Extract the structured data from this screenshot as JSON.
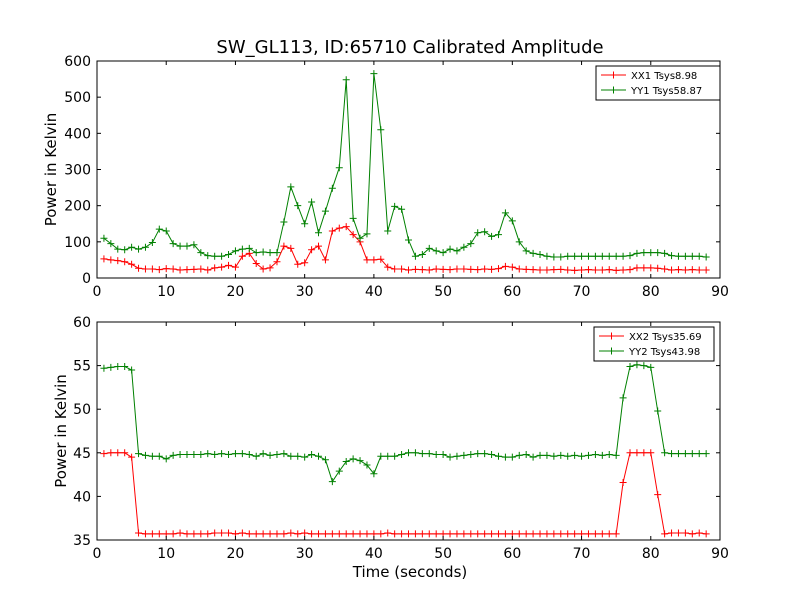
{
  "figure": {
    "title": "SW_GL113, ID:65710 Calibrated Amplitude",
    "xlabel": "Time (seconds)"
  },
  "chart_data": [
    {
      "type": "line",
      "xlabel": "",
      "ylabel": "Power in Kelvin",
      "xlim": [
        0,
        90
      ],
      "ylim": [
        0,
        600
      ],
      "xticks": [
        0,
        10,
        20,
        30,
        40,
        50,
        60,
        70,
        80,
        90
      ],
      "yticks": [
        0,
        100,
        200,
        300,
        400,
        500,
        600
      ],
      "grid": false,
      "legend_position": "top-right",
      "x": [
        1,
        2,
        3,
        4,
        5,
        6,
        7,
        8,
        9,
        10,
        11,
        12,
        13,
        14,
        15,
        16,
        17,
        18,
        19,
        20,
        21,
        22,
        23,
        24,
        25,
        26,
        27,
        28,
        29,
        30,
        31,
        32,
        33,
        34,
        35,
        36,
        37,
        38,
        39,
        40,
        41,
        42,
        43,
        44,
        45,
        46,
        47,
        48,
        49,
        50,
        51,
        52,
        53,
        54,
        55,
        56,
        57,
        58,
        59,
        60,
        61,
        62,
        63,
        64,
        65,
        66,
        67,
        68,
        69,
        70,
        71,
        72,
        73,
        74,
        75,
        76,
        77,
        78,
        79,
        80,
        81,
        82,
        83,
        84,
        85,
        86,
        87,
        88
      ],
      "series": [
        {
          "name": "XX1 Tsys8.98",
          "color": "#ff0000",
          "values": [
            53,
            50,
            48,
            45,
            38,
            27,
            25,
            25,
            23,
            26,
            25,
            22,
            23,
            24,
            25,
            22,
            28,
            30,
            35,
            30,
            60,
            68,
            40,
            25,
            28,
            45,
            88,
            82,
            38,
            42,
            78,
            88,
            50,
            130,
            138,
            142,
            120,
            100,
            50,
            50,
            52,
            30,
            25,
            25,
            22,
            24,
            23,
            22,
            25,
            24,
            23,
            25,
            25,
            24,
            23,
            25,
            24,
            26,
            32,
            30,
            25,
            24,
            23,
            22,
            22,
            23,
            24,
            22,
            21,
            22,
            23,
            22,
            22,
            23,
            21,
            22,
            23,
            28,
            28,
            28,
            27,
            25,
            22,
            23,
            22,
            23,
            22,
            22
          ]
        },
        {
          "name": "YY1 Tsys58.87",
          "color": "#008000",
          "values": [
            110,
            95,
            80,
            78,
            85,
            80,
            85,
            98,
            135,
            130,
            95,
            88,
            88,
            92,
            70,
            62,
            60,
            60,
            65,
            75,
            80,
            82,
            70,
            72,
            70,
            70,
            155,
            252,
            200,
            150,
            210,
            125,
            185,
            248,
            305,
            548,
            165,
            110,
            122,
            565,
            410,
            130,
            198,
            190,
            105,
            60,
            65,
            82,
            75,
            70,
            80,
            75,
            85,
            95,
            125,
            128,
            115,
            120,
            180,
            158,
            100,
            75,
            68,
            65,
            60,
            58,
            58,
            60,
            60,
            60,
            60,
            60,
            60,
            60,
            60,
            60,
            62,
            68,
            70,
            70,
            70,
            68,
            62,
            60,
            60,
            60,
            60,
            58
          ]
        }
      ]
    },
    {
      "type": "line",
      "xlabel": "Time (seconds)",
      "ylabel": "Power in Kelvin",
      "xlim": [
        0,
        90
      ],
      "ylim": [
        35,
        60
      ],
      "xticks": [
        0,
        10,
        20,
        30,
        40,
        50,
        60,
        70,
        80,
        90
      ],
      "yticks": [
        35,
        40,
        45,
        50,
        55,
        60
      ],
      "grid": false,
      "legend_position": "top-right",
      "x": [
        1,
        2,
        3,
        4,
        5,
        6,
        7,
        8,
        9,
        10,
        11,
        12,
        13,
        14,
        15,
        16,
        17,
        18,
        19,
        20,
        21,
        22,
        23,
        24,
        25,
        26,
        27,
        28,
        29,
        30,
        31,
        32,
        33,
        34,
        35,
        36,
        37,
        38,
        39,
        40,
        41,
        42,
        43,
        44,
        45,
        46,
        47,
        48,
        49,
        50,
        51,
        52,
        53,
        54,
        55,
        56,
        57,
        58,
        59,
        60,
        61,
        62,
        63,
        64,
        65,
        66,
        67,
        68,
        69,
        70,
        71,
        72,
        73,
        74,
        75,
        76,
        77,
        78,
        79,
        80,
        81,
        82,
        83,
        84,
        85,
        86,
        87,
        88
      ],
      "series": [
        {
          "name": "XX2 Tsys35.69",
          "color": "#ff0000",
          "values": [
            44.9,
            45.0,
            45.0,
            45.0,
            44.5,
            35.8,
            35.7,
            35.7,
            35.7,
            35.7,
            35.7,
            35.8,
            35.7,
            35.7,
            35.7,
            35.7,
            35.8,
            35.8,
            35.8,
            35.7,
            35.8,
            35.7,
            35.7,
            35.7,
            35.7,
            35.7,
            35.7,
            35.8,
            35.7,
            35.8,
            35.7,
            35.7,
            35.7,
            35.7,
            35.7,
            35.7,
            35.7,
            35.7,
            35.7,
            35.7,
            35.7,
            35.8,
            35.7,
            35.7,
            35.7,
            35.7,
            35.7,
            35.7,
            35.7,
            35.7,
            35.7,
            35.7,
            35.7,
            35.7,
            35.7,
            35.7,
            35.7,
            35.7,
            35.7,
            35.7,
            35.7,
            35.7,
            35.7,
            35.7,
            35.7,
            35.7,
            35.7,
            35.7,
            35.7,
            35.7,
            35.7,
            35.7,
            35.7,
            35.7,
            35.7,
            41.6,
            45.0,
            45.0,
            45.0,
            45.0,
            40.2,
            35.7,
            35.8,
            35.8,
            35.8,
            35.7,
            35.8,
            35.7
          ]
        },
        {
          "name": "YY2 Tsys43.98",
          "color": "#008000",
          "values": [
            54.7,
            54.8,
            54.9,
            54.9,
            54.5,
            44.9,
            44.7,
            44.6,
            44.6,
            44.3,
            44.7,
            44.8,
            44.8,
            44.8,
            44.8,
            44.9,
            44.8,
            44.9,
            44.8,
            44.9,
            44.9,
            44.8,
            44.6,
            44.9,
            44.7,
            44.8,
            44.9,
            44.6,
            44.6,
            44.5,
            44.8,
            44.6,
            44.2,
            41.7,
            42.9,
            44.0,
            44.3,
            44.1,
            43.6,
            42.6,
            44.6,
            44.6,
            44.6,
            44.8,
            45.0,
            45.0,
            44.9,
            44.9,
            44.8,
            44.8,
            44.5,
            44.6,
            44.7,
            44.8,
            44.9,
            44.9,
            44.8,
            44.6,
            44.5,
            44.5,
            44.7,
            44.8,
            44.5,
            44.7,
            44.7,
            44.6,
            44.7,
            44.6,
            44.7,
            44.6,
            44.7,
            44.8,
            44.7,
            44.8,
            44.7,
            51.3,
            54.9,
            55.1,
            55.0,
            54.8,
            49.8,
            45.0,
            44.9,
            44.9,
            44.9,
            44.9,
            44.9,
            44.9
          ]
        }
      ]
    }
  ]
}
